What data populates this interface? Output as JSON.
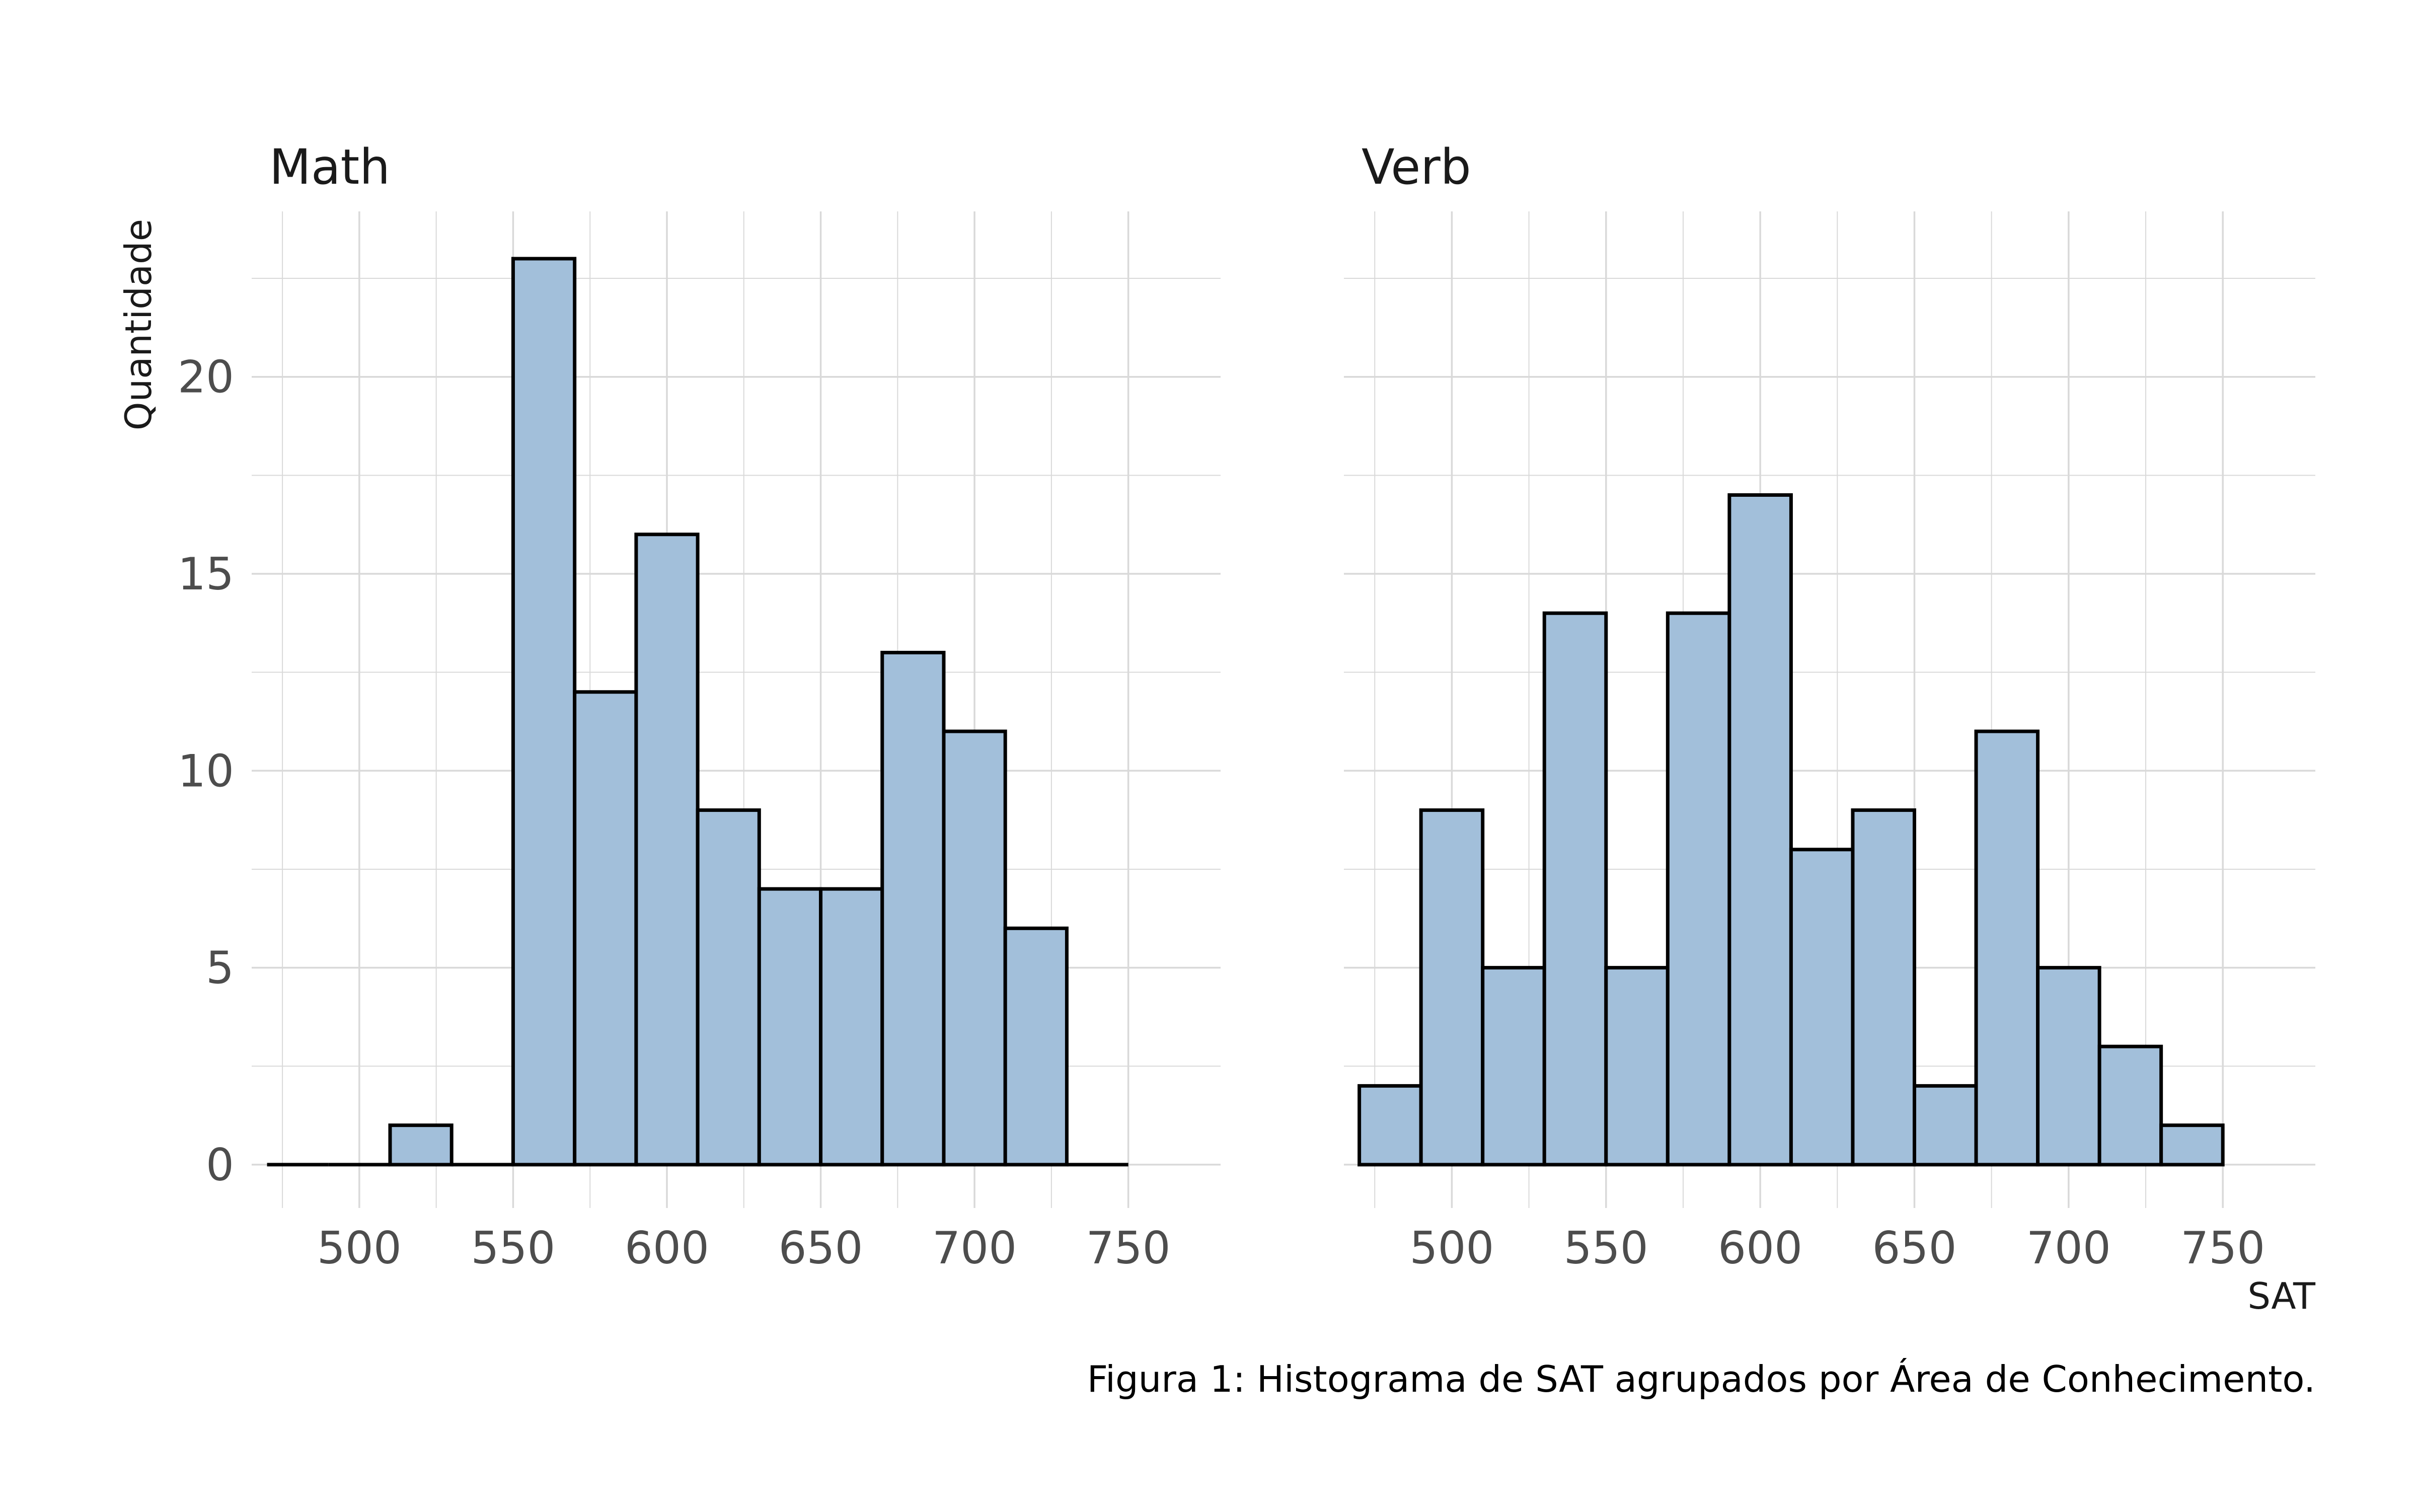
{
  "chart_data": {
    "type": "bar",
    "bin_width": 20,
    "x_ticks": [
      500,
      550,
      600,
      650,
      700,
      750
    ],
    "y_ticks": [
      0,
      5,
      10,
      15,
      20
    ],
    "xlim": [
      465,
      780
    ],
    "ylim": [
      -1.1,
      24.2
    ],
    "xlabel": "SAT",
    "ylabel": "Quantidade",
    "caption": "Figura 1: Histograma de SAT agrupados por Área de Conhecimento.",
    "grid": true,
    "colors": {
      "fill": "#a2bfda",
      "stroke": "#000000",
      "grid": "#d9d9d9",
      "tick_text": "#4d4d4d",
      "title_text": "#1a1a1a"
    },
    "panels": [
      {
        "title": "Math",
        "bin_starts": [
          470,
          490,
          510,
          530,
          550,
          570,
          590,
          610,
          630,
          650,
          670,
          690,
          710,
          730
        ],
        "values": [
          0,
          0,
          1,
          0,
          23,
          12,
          16,
          9,
          7,
          7,
          13,
          11,
          6,
          0
        ]
      },
      {
        "title": "Verb",
        "bin_starts": [
          470,
          490,
          510,
          530,
          550,
          570,
          590,
          610,
          630,
          650,
          670,
          690,
          710,
          730
        ],
        "values": [
          2,
          9,
          5,
          14,
          5,
          14,
          17,
          8,
          9,
          2,
          11,
          5,
          3,
          1
        ]
      }
    ]
  }
}
